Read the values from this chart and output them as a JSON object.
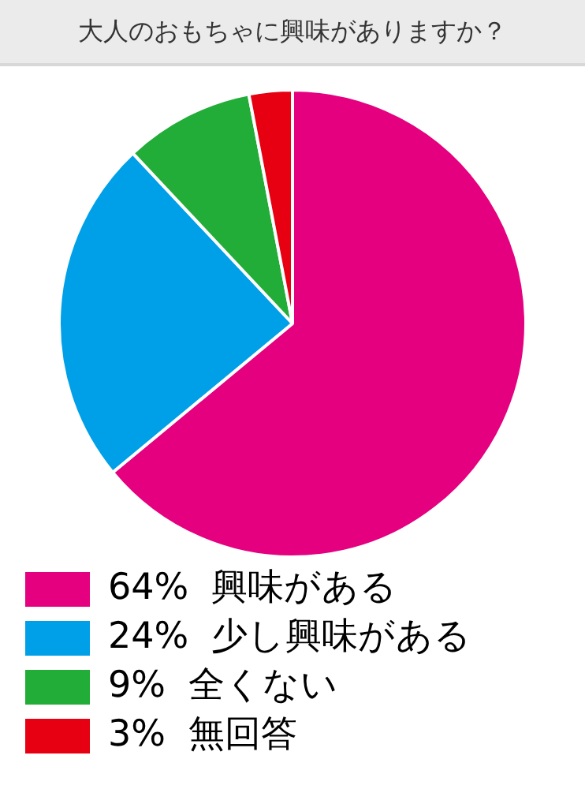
{
  "chart_data": {
    "type": "pie",
    "title": "大人のおもちゃに興味がありますか？",
    "categories": [
      "興味がある",
      "少し興味がある",
      "全くない",
      "無回答"
    ],
    "values": [
      64,
      24,
      9,
      3
    ],
    "value_labels": [
      "64%",
      "24%",
      "9%",
      "3%"
    ],
    "colors": [
      "#e4007f",
      "#00a0e9",
      "#22ac38",
      "#e60012"
    ],
    "legend": "bottom"
  }
}
